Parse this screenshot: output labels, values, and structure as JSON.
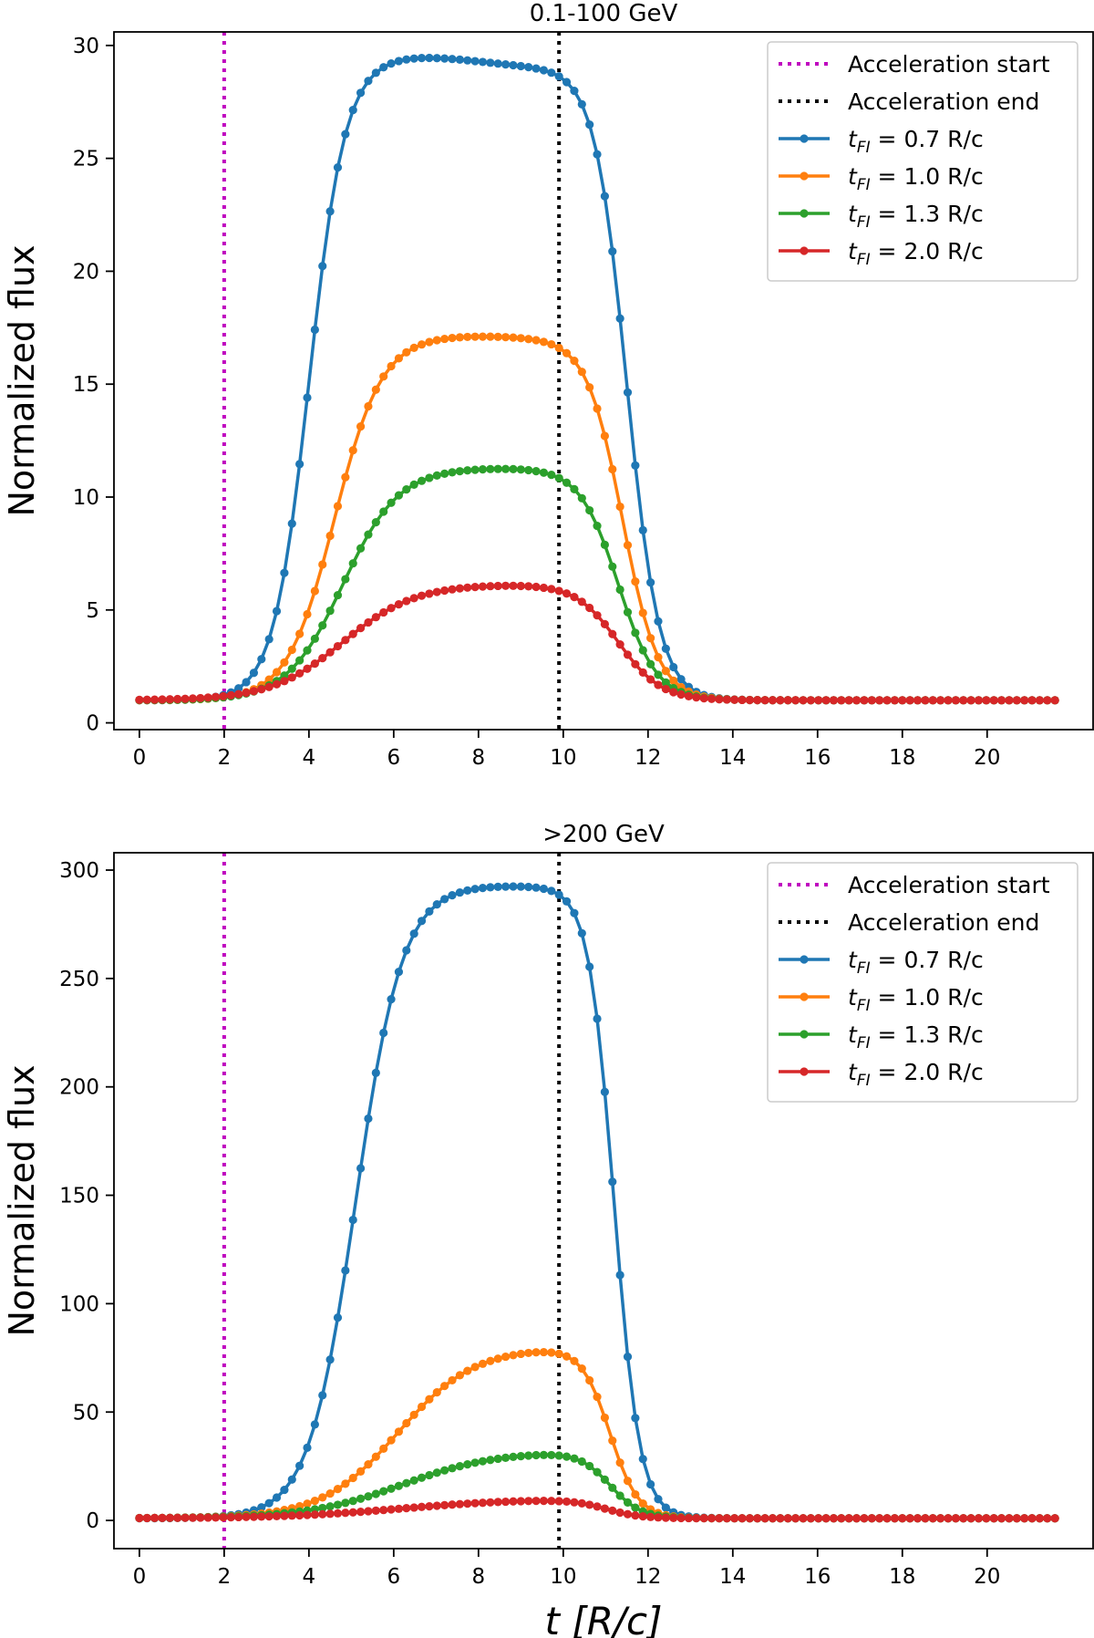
{
  "chart_data": [
    {
      "type": "line",
      "title": "0.1-100 GeV",
      "ylabel": "Normalized flux",
      "xlabel": "",
      "xlim": [
        -0.6,
        22.5
      ],
      "ylim": [
        -0.3,
        30.6
      ],
      "xticks": [
        0,
        2,
        4,
        6,
        8,
        10,
        12,
        14,
        16,
        18,
        20
      ],
      "yticks": [
        0,
        5,
        10,
        15,
        20,
        25,
        30
      ],
      "grid": false,
      "legend_position": "top-right",
      "vlines": [
        {
          "name": "Acceleration start",
          "x": 2.0,
          "color": "#bf00bf"
        },
        {
          "name": "Acceleration end",
          "x": 9.9,
          "color": "#000000"
        }
      ],
      "series": [
        {
          "name": "= 0.7 R/c",
          "sub": "FI",
          "color": "#1f77b4",
          "peak": 29.4,
          "plateau_end": 29.0,
          "hump": [
            6.4,
            29.5
          ],
          "rise_mid": 4.0,
          "rise_width": 0.42,
          "fall_mid": 11.5,
          "fall_width": 0.38
        },
        {
          "name": "= 1.0 R/c",
          "sub": "FI",
          "color": "#ff7f0e",
          "peak": 17.1,
          "plateau_end": 17.0,
          "hump": [
            7.5,
            17.15
          ],
          "rise_mid": 4.6,
          "rise_width": 0.55,
          "fall_mid": 11.4,
          "fall_width": 0.42
        },
        {
          "name": "= 1.3 R/c",
          "sub": "FI",
          "color": "#2ca02c",
          "peak": 11.3,
          "plateau_end": 11.25,
          "hump": [
            8.5,
            11.3
          ],
          "rise_mid": 4.8,
          "rise_width": 0.65,
          "fall_mid": 11.3,
          "fall_width": 0.45
        },
        {
          "name": "= 2.0 R/c",
          "sub": "FI",
          "color": "#d62728",
          "peak": 6.15,
          "plateau_end": 6.15,
          "hump": [
            9.0,
            6.15
          ],
          "rise_mid": 4.8,
          "rise_width": 0.85,
          "fall_mid": 11.3,
          "fall_width": 0.5
        }
      ]
    },
    {
      "type": "line",
      "title": ">200 GeV",
      "ylabel": "Normalized flux",
      "xlabel": "t [R/c]",
      "xlim": [
        -0.6,
        22.5
      ],
      "ylim": [
        -13,
        308
      ],
      "xticks": [
        0,
        2,
        4,
        6,
        8,
        10,
        12,
        14,
        16,
        18,
        20
      ],
      "yticks": [
        0,
        50,
        100,
        150,
        200,
        250,
        300
      ],
      "grid": false,
      "legend_position": "top-right",
      "vlines": [
        {
          "name": "Acceleration start",
          "x": 2.0,
          "color": "#bf00bf"
        },
        {
          "name": "Acceleration end",
          "x": 9.9,
          "color": "#000000"
        }
      ],
      "series": [
        {
          "name": "= 0.7 R/c",
          "sub": "FI",
          "color": "#1f77b4",
          "peak": 292,
          "plateau_end": 292,
          "hump": [
            8.0,
            293
          ],
          "rise_mid": 5.1,
          "rise_width": 0.55,
          "fall_mid": 11.2,
          "fall_width": 0.3
        },
        {
          "name": "= 1.0 R/c",
          "sub": "FI",
          "color": "#ff7f0e",
          "peak": 80,
          "plateau_end": 80,
          "hump": [
            9.2,
            80
          ],
          "rise_mid": 6.1,
          "rise_width": 0.9,
          "fall_mid": 11.1,
          "fall_width": 0.33
        },
        {
          "name": "= 1.3 R/c",
          "sub": "FI",
          "color": "#2ca02c",
          "peak": 32,
          "plateau_end": 32,
          "hump": [
            9.5,
            32
          ],
          "rise_mid": 6.2,
          "rise_width": 1.1,
          "fall_mid": 11.1,
          "fall_width": 0.36
        },
        {
          "name": "= 2.0 R/c",
          "sub": "FI",
          "color": "#d62728",
          "peak": 10,
          "plateau_end": 10,
          "hump": [
            9.8,
            10
          ],
          "rise_mid": 6.2,
          "rise_width": 1.4,
          "fall_mid": 11.0,
          "fall_width": 0.4
        }
      ]
    }
  ]
}
